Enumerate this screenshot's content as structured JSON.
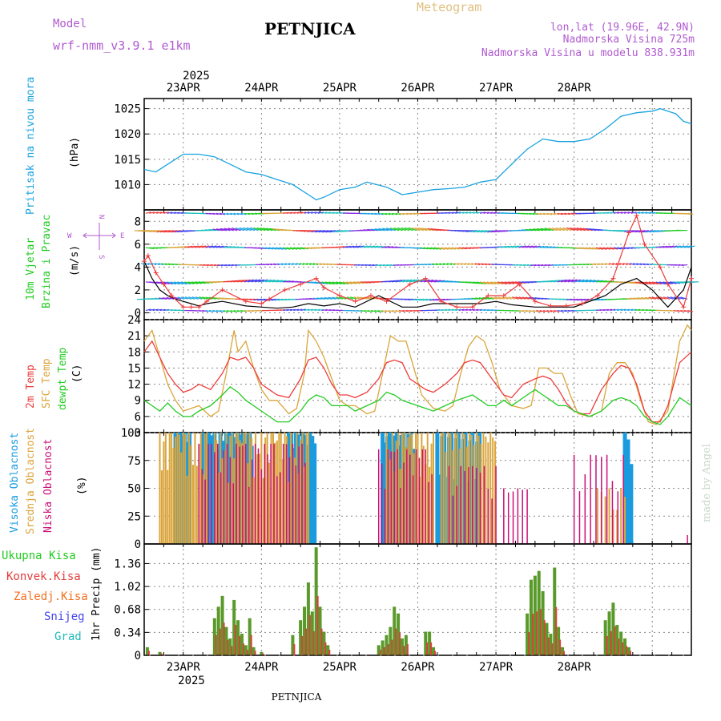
{
  "header": {
    "model_label": "Model",
    "model_name": "wrf-nmm_v3.9.1 e1km",
    "station": "PETNJICA",
    "meteogram_label": "Meteogram",
    "coords": "lon,lat (19.96E, 42.9N)",
    "altitude": "Nadmorska Visina 725m",
    "model_altitude": "Nadmorska Visina u modelu 838.931m",
    "year_top": "2025",
    "year_bottom": "2025",
    "footer_station": "PETNJICA",
    "watermark": "made by Angel"
  },
  "colors": {
    "pressure": "#1aa3e0",
    "temp2m": "#ee3b3b",
    "sfc_temp": "#daa53c",
    "dewpt": "#22cc22",
    "cloud_high": "#1a9be0",
    "cloud_mid": "#daa53c",
    "cloud_low": "#cc1177",
    "total_precip": "#5a9a2a",
    "conv_precip": "#e23c3c",
    "frozen_precip": "#f07020",
    "snow": "#4444ee",
    "graupel": "#22bbbb",
    "wind_speed": "#000000",
    "wind_gust": "#ee3b3b",
    "model_label": "#b05ad0",
    "meteogram_label": "#e0c080",
    "grid": "#888888"
  },
  "chart_data": [
    {
      "type": "line",
      "panel": "pressure",
      "ylabel": [
        "Pritisak na nivou mora",
        "(hPa)"
      ],
      "yticks": [
        1010,
        1015,
        1020,
        1025
      ],
      "ylim": [
        1005,
        1027
      ],
      "x_unit": "days from 23APR 00UTC",
      "series": [
        {
          "x": [
            -0.5,
            -0.35,
            -0.2,
            0,
            0.2,
            0.4,
            0.6,
            0.8,
            1.0,
            1.2,
            1.4,
            1.6,
            1.7,
            1.8,
            2.0,
            2.2,
            2.35,
            2.6,
            2.8,
            3.0,
            3.2,
            3.4,
            3.6,
            3.8,
            4.0,
            4.2,
            4.4,
            4.6,
            4.8,
            5.0,
            5.2,
            5.4,
            5.6,
            5.8,
            6.0,
            6.1,
            6.2,
            6.3,
            6.4,
            6.5
          ],
          "values": [
            1013,
            1012.5,
            1014,
            1016,
            1016,
            1015.5,
            1014,
            1012.5,
            1012,
            1011,
            1010,
            1008,
            1007,
            1007.5,
            1009,
            1009.5,
            1010.5,
            1009.5,
            1008,
            1008.5,
            1009,
            1009.2,
            1009.5,
            1010.5,
            1011,
            1014,
            1017,
            1019,
            1018.5,
            1018.5,
            1019,
            1021,
            1023.5,
            1024.2,
            1024.5,
            1025,
            1024.5,
            1024,
            1022.5,
            1022
          ]
        }
      ]
    },
    {
      "type": "line",
      "panel": "wind",
      "ylabel": [
        "10m Vjetar",
        "Brzina i Pravac",
        "(m/s)"
      ],
      "compass": [
        "N",
        "W",
        "E",
        "S"
      ],
      "yticks": [
        0,
        2,
        4,
        6,
        8
      ],
      "ylim": [
        -0.6,
        9
      ],
      "barb_levels": [
        0.2,
        1.2,
        2.7,
        4.2,
        5.7,
        7.2,
        8.7
      ],
      "series": [
        {
          "name": "speed",
          "x": [
            -0.5,
            -0.4,
            -0.3,
            -0.2,
            -0.1,
            0,
            0.1,
            0.2,
            0.3,
            0.5,
            0.8,
            1.0,
            1.2,
            1.4,
            1.6,
            1.8,
            2.0,
            2.2,
            2.5,
            2.8,
            3.0,
            3.2,
            3.5,
            3.8,
            4.0,
            4.2,
            4.5,
            4.8,
            5.0,
            5.2,
            5.4,
            5.6,
            5.8,
            6.0,
            6.2,
            6.4,
            6.5
          ],
          "values": [
            4.5,
            3,
            2,
            1.5,
            1.2,
            1,
            0.8,
            0.6,
            0.8,
            1,
            0.6,
            0.5,
            0.4,
            0.5,
            0.8,
            0.6,
            0.8,
            0.5,
            1.5,
            0.5,
            0.5,
            0.8,
            0.8,
            0.8,
            1,
            0.7,
            0.5,
            0.5,
            0.5,
            1,
            1.5,
            2.5,
            3,
            2,
            0.5,
            2,
            4
          ]
        },
        {
          "name": "gust",
          "x": [
            -0.5,
            -0.45,
            -0.35,
            -0.25,
            -0.15,
            0,
            0.1,
            0.2,
            0.3,
            0.5,
            0.8,
            1.0,
            1.1,
            1.3,
            1.5,
            1.7,
            1.8,
            2.0,
            2.2,
            2.4,
            2.6,
            2.9,
            3.1,
            3.3,
            3.5,
            3.7,
            3.9,
            4.1,
            4.3,
            4.5,
            4.7,
            4.9,
            5.1,
            5.3,
            5.5,
            5.7,
            5.8,
            5.9,
            6.1,
            6.2,
            6.4,
            6.5
          ],
          "values": [
            4.5,
            5,
            3.5,
            2.5,
            1.5,
            0.5,
            0.5,
            0.5,
            1,
            2,
            1,
            0.8,
            1.2,
            2,
            2.5,
            3,
            2.2,
            1.5,
            1,
            1.5,
            1,
            2.5,
            3,
            1,
            0.5,
            0.5,
            1.5,
            1.5,
            2.5,
            1,
            0.6,
            0.6,
            0.8,
            1.5,
            3,
            7,
            8.5,
            6,
            4,
            2.5,
            0.5,
            3
          ]
        }
      ]
    },
    {
      "type": "line",
      "panel": "temperature",
      "ylabel": [
        "2m Temp",
        "SFC Temp",
        "dewpt Temp",
        "(C)"
      ],
      "yticks": [
        3,
        6,
        9,
        12,
        15,
        18,
        21,
        24
      ],
      "ylim": [
        3,
        24
      ],
      "series": [
        {
          "name": "2m Temp",
          "x": [
            -0.5,
            -0.4,
            -0.3,
            -0.2,
            -0.1,
            0,
            0.1,
            0.2,
            0.35,
            0.5,
            0.6,
            0.7,
            0.8,
            0.9,
            1.0,
            1.1,
            1.2,
            1.35,
            1.5,
            1.6,
            1.7,
            1.8,
            1.9,
            2.0,
            2.1,
            2.2,
            2.35,
            2.5,
            2.6,
            2.7,
            2.8,
            2.9,
            3.0,
            3.1,
            3.2,
            3.35,
            3.5,
            3.6,
            3.7,
            3.8,
            3.9,
            4.0,
            4.1,
            4.2,
            4.35,
            4.5,
            4.6,
            4.7,
            4.8,
            4.9,
            5.0,
            5.1,
            5.2,
            5.35,
            5.5,
            5.6,
            5.7,
            5.8,
            5.9,
            6.0,
            6.1,
            6.2,
            6.35,
            6.5
          ],
          "values": [
            18,
            20,
            17,
            14,
            12,
            10.5,
            11,
            12,
            11,
            14,
            17,
            16.5,
            17,
            15,
            12,
            11,
            10,
            9.5,
            13,
            16.5,
            17,
            15,
            12,
            10,
            10,
            9.5,
            10.5,
            13,
            16,
            16.5,
            16,
            13,
            12,
            11,
            10.5,
            12,
            14,
            16,
            16.5,
            16,
            14,
            12,
            10,
            9.5,
            12,
            13,
            13.5,
            13,
            11,
            8.5,
            7,
            6.5,
            6.5,
            11,
            14,
            15.5,
            15,
            12,
            7,
            5,
            5,
            8,
            16,
            18
          ]
        },
        {
          "name": "SFC Temp",
          "x": [
            -0.5,
            -0.4,
            -0.3,
            -0.2,
            -0.1,
            0,
            0.1,
            0.2,
            0.35,
            0.45,
            0.55,
            0.65,
            0.7,
            0.8,
            0.9,
            1.0,
            1.1,
            1.2,
            1.35,
            1.45,
            1.55,
            1.6,
            1.7,
            1.8,
            1.9,
            2.0,
            2.1,
            2.2,
            2.35,
            2.45,
            2.55,
            2.65,
            2.75,
            2.85,
            2.95,
            3.05,
            3.2,
            3.35,
            3.45,
            3.55,
            3.65,
            3.75,
            3.85,
            3.95,
            4.05,
            4.2,
            4.35,
            4.45,
            4.55,
            4.65,
            4.75,
            4.85,
            4.95,
            5.05,
            5.2,
            5.35,
            5.45,
            5.55,
            5.65,
            5.75,
            5.85,
            5.95,
            6.05,
            6.2,
            6.35,
            6.45,
            6.5
          ],
          "values": [
            20,
            22,
            17,
            12,
            9,
            7,
            7.5,
            8,
            6,
            7,
            14,
            22,
            18,
            20,
            15,
            11,
            9,
            9,
            6.5,
            7.5,
            14,
            22,
            20,
            17,
            13,
            9,
            8,
            8,
            6.5,
            7,
            14,
            21,
            20,
            20,
            15,
            10,
            7.5,
            7,
            8,
            14,
            19,
            21,
            20,
            16,
            11,
            8,
            7.5,
            8,
            15,
            15,
            14,
            14,
            10,
            6.5,
            6,
            7,
            14,
            16,
            16,
            14,
            9,
            5,
            4.5,
            7,
            20,
            23,
            22
          ]
        },
        {
          "name": "dewpt Temp",
          "x": [
            -0.5,
            -0.4,
            -0.3,
            -0.2,
            -0.1,
            0,
            0.1,
            0.2,
            0.35,
            0.5,
            0.6,
            0.7,
            0.8,
            0.9,
            1.0,
            1.1,
            1.2,
            1.35,
            1.5,
            1.6,
            1.7,
            1.8,
            1.9,
            2.0,
            2.1,
            2.2,
            2.35,
            2.5,
            2.6,
            2.7,
            2.8,
            2.9,
            3.0,
            3.1,
            3.2,
            3.35,
            3.5,
            3.6,
            3.7,
            3.8,
            3.9,
            4.0,
            4.1,
            4.2,
            4.35,
            4.5,
            4.6,
            4.7,
            4.8,
            4.9,
            5.0,
            5.1,
            5.2,
            5.35,
            5.5,
            5.6,
            5.7,
            5.8,
            5.9,
            6.0,
            6.1,
            6.2,
            6.35,
            6.5
          ],
          "values": [
            9,
            8,
            7,
            8.5,
            7,
            6,
            6,
            7,
            8,
            10,
            11.5,
            10.5,
            9,
            8,
            7,
            6,
            5,
            5,
            7,
            9,
            10,
            9.5,
            8,
            8,
            8,
            7,
            8,
            9,
            10.5,
            10,
            9,
            8.5,
            8,
            7.5,
            7,
            8,
            9,
            9.5,
            10,
            9,
            8,
            8,
            9,
            8,
            9.5,
            11,
            10,
            9,
            8,
            8,
            7,
            6.5,
            6,
            7,
            9,
            9.5,
            9,
            8,
            6,
            5,
            4.5,
            6,
            9.5,
            8
          ]
        }
      ]
    },
    {
      "type": "bar",
      "panel": "cloud",
      "ylabel": [
        "Visoka Oblacnost",
        "Srednja Oblacnost",
        "Niska Oblacnost",
        "(%)"
      ],
      "yticks": [
        0,
        25,
        50,
        75,
        100
      ],
      "ylim": [
        0,
        100
      ],
      "blocks": [
        {
          "name": "Visoka Oblacnost",
          "ranges": [
            [
              -0.1,
              0.1,
              100,
              0.02
            ],
            [
              0.25,
              0.9,
              100,
              0.025
            ],
            [
              1.35,
              1.7,
              100,
              0.03
            ],
            [
              2.55,
              2.95,
              100,
              0.03
            ],
            [
              3.25,
              3.8,
              100,
              0.03
            ],
            [
              5.65,
              5.75,
              100,
              0.04
            ]
          ]
        },
        {
          "name": "Srednja Oblacnost",
          "ranges": [
            [
              -0.3,
              0.3,
              100,
              0.025
            ],
            [
              0.4,
              1.6,
              100,
              0.025
            ],
            [
              2.6,
              3.2,
              100,
              0.025
            ],
            [
              3.3,
              4.0,
              100,
              0.03
            ],
            [
              5.3,
              5.65,
              50,
              0.05
            ]
          ]
        },
        {
          "name": "Niska Oblacnost",
          "ranges": [
            [
              0.2,
              1.6,
              90,
              0.04
            ],
            [
              2.5,
              3.2,
              85,
              0.04
            ],
            [
              3.4,
              4.0,
              70,
              0.05
            ],
            [
              4.1,
              4.4,
              50,
              0.06
            ],
            [
              5.0,
              5.7,
              80,
              0.07
            ],
            [
              6.45,
              6.47,
              8,
              0.05
            ]
          ]
        }
      ]
    },
    {
      "type": "bar",
      "panel": "precip",
      "ylabel": [
        "Ukupna Kisa",
        "Konvek.Kisa",
        "Zaledj.Kisa",
        "Snijeg",
        "Grad",
        "1hr Precip (mm)"
      ],
      "yticks": [
        0,
        0.34,
        0.68,
        1.02,
        1.36
      ],
      "ylim": [
        0,
        1.65
      ],
      "x": [
        -0.46,
        -0.3,
        0.4,
        0.45,
        0.5,
        0.55,
        0.6,
        0.65,
        0.7,
        0.75,
        0.8,
        0.85,
        0.9,
        1.0,
        1.4,
        1.5,
        1.55,
        1.6,
        1.65,
        1.7,
        1.75,
        1.8,
        1.85,
        2.5,
        2.55,
        2.6,
        2.65,
        2.7,
        2.75,
        2.8,
        2.85,
        3.1,
        3.15,
        3.2,
        4.4,
        4.45,
        4.5,
        4.55,
        4.6,
        4.65,
        4.7,
        4.75,
        4.8,
        4.85,
        5.4,
        5.45,
        5.5,
        5.55,
        5.6,
        5.65,
        5.7
      ],
      "values": [
        0.12,
        0.05,
        0.55,
        0.72,
        0.88,
        0.42,
        0.25,
        0.82,
        0.52,
        0.32,
        0.15,
        0.55,
        0.12,
        0.05,
        0.3,
        0.52,
        0.72,
        1.08,
        0.65,
        1.6,
        0.72,
        0.35,
        0.15,
        0.15,
        0.22,
        0.3,
        0.42,
        0.72,
        0.62,
        0.25,
        0.3,
        0.35,
        0.35,
        0.12,
        0.62,
        1.12,
        1.18,
        1.25,
        0.95,
        0.48,
        0.32,
        1.3,
        0.42,
        0.12,
        0.52,
        0.65,
        0.78,
        0.45,
        0.35,
        0.25,
        0.12
      ],
      "conv_ratio": 0.55
    }
  ],
  "x_axis": {
    "labels": [
      "23APR",
      "24APR",
      "25APR",
      "26APR",
      "27APR",
      "28APR"
    ],
    "xlim": [
      -0.5,
      6.5
    ]
  }
}
